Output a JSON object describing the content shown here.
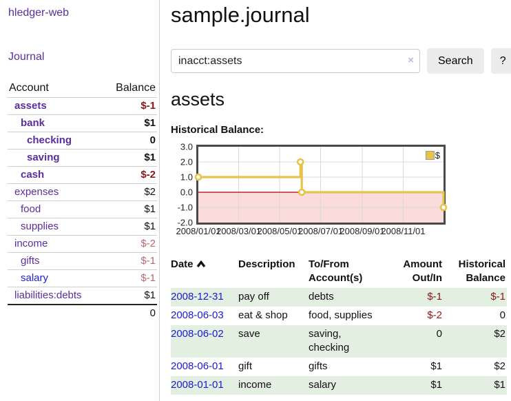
{
  "brand": "hledger-web",
  "sidebar": {
    "nav": {
      "journal": "Journal"
    },
    "table": {
      "headers": {
        "account": "Account",
        "balance": "Balance"
      },
      "accounts": [
        {
          "name": "assets",
          "depth": 1,
          "bold": true,
          "balance": "$-1",
          "balance_style": "neg-strong"
        },
        {
          "name": "bank",
          "depth": 2,
          "bold": true,
          "balance": "$1",
          "balance_style": "pos"
        },
        {
          "name": "checking",
          "depth": 3,
          "bold": true,
          "balance": "0",
          "balance_style": "pos"
        },
        {
          "name": "saving",
          "depth": 3,
          "bold": true,
          "balance": "$1",
          "balance_style": "pos"
        },
        {
          "name": "cash",
          "depth": 2,
          "bold": true,
          "balance": "$-2",
          "balance_style": "neg-strong"
        },
        {
          "name": "expenses",
          "depth": 1,
          "bold": false,
          "balance": "$2",
          "balance_style": "pos"
        },
        {
          "name": "food",
          "depth": 2,
          "bold": false,
          "balance": "$1",
          "balance_style": "pos"
        },
        {
          "name": "supplies",
          "depth": 2,
          "bold": false,
          "balance": "$1",
          "balance_style": "pos"
        },
        {
          "name": "income",
          "depth": 1,
          "bold": false,
          "balance": "$-2",
          "balance_style": "neg-muted"
        },
        {
          "name": "gifts",
          "depth": 2,
          "bold": false,
          "balance": "$-1",
          "balance_style": "neg-muted"
        },
        {
          "name": "salary",
          "depth": 2,
          "bold": false,
          "balance": "$-1",
          "balance_style": "neg-muted",
          "link_style": "blue"
        },
        {
          "name": "liabilities:debts",
          "depth": 1,
          "bold": false,
          "balance": "$1",
          "balance_style": "pos"
        }
      ],
      "total": "0"
    }
  },
  "main": {
    "title": "sample.journal",
    "search": {
      "value": "inacct:assets",
      "clear_icon": "×",
      "button": "Search",
      "help": "?"
    },
    "account_heading": "assets",
    "chart_heading": "Historical Balance:",
    "register": {
      "headers": {
        "date": "Date",
        "description": "Description",
        "accounts": "To/From Account(s)",
        "amount": "Amount Out/In",
        "balance": "Historical Balance"
      },
      "sort": "date ascending",
      "rows": [
        {
          "date": "2008-12-31",
          "description": "pay off",
          "accounts": "debts",
          "amount": "$-1",
          "amount_neg": true,
          "balance": "$-1",
          "balance_neg": true,
          "shaded": true
        },
        {
          "date": "2008-06-03",
          "description": "eat & shop",
          "accounts": "food, supplies",
          "amount": "$-2",
          "amount_neg": true,
          "balance": "0",
          "balance_neg": false,
          "shaded": false
        },
        {
          "date": "2008-06-02",
          "description": "save",
          "accounts": "saving, checking",
          "amount": "0",
          "amount_neg": false,
          "balance": "$2",
          "balance_neg": false,
          "shaded": true
        },
        {
          "date": "2008-06-01",
          "description": "gift",
          "accounts": "gifts",
          "amount": "$1",
          "amount_neg": false,
          "balance": "$2",
          "balance_neg": false,
          "shaded": false
        },
        {
          "date": "2008-01-01",
          "description": "income",
          "accounts": "salary",
          "amount": "$1",
          "amount_neg": false,
          "balance": "$1",
          "balance_neg": false,
          "shaded": true
        }
      ]
    }
  },
  "chart_data": {
    "type": "line",
    "step": true,
    "title": "Historical Balance:",
    "series": [
      {
        "name": "$",
        "color": "#e8c34a",
        "points": [
          {
            "date": "2008/01/01",
            "day": 0,
            "value": 1
          },
          {
            "date": "2008/06/01",
            "day": 152,
            "value": 2
          },
          {
            "date": "2008/06/03",
            "day": 154,
            "value": 0
          },
          {
            "date": "2008/12/31",
            "day": 365,
            "value": -1
          }
        ]
      }
    ],
    "x_ticks": [
      {
        "label": "2008/01/01",
        "day": 0
      },
      {
        "label": "2008/03/01",
        "day": 60
      },
      {
        "label": "2008/05/01",
        "day": 121
      },
      {
        "label": "2008/07/01",
        "day": 182
      },
      {
        "label": "2008/09/01",
        "day": 244
      },
      {
        "label": "2008/11/01",
        "day": 305
      }
    ],
    "y_ticks": [
      {
        "label": "3.0",
        "value": 3
      },
      {
        "label": "2.0",
        "value": 2
      },
      {
        "label": "1.0",
        "value": 1
      },
      {
        "label": "0.0",
        "value": 0
      },
      {
        "label": "-1.0",
        "value": -1
      },
      {
        "label": "-2.0",
        "value": -2
      }
    ],
    "ylim": [
      -2,
      3
    ],
    "x_max_day": 365,
    "grid": true,
    "legend_position": "top-right",
    "negative_fill": "#fadcdc",
    "zero_line_color": "#aa0000",
    "grid_color": "#d9d9d9"
  }
}
